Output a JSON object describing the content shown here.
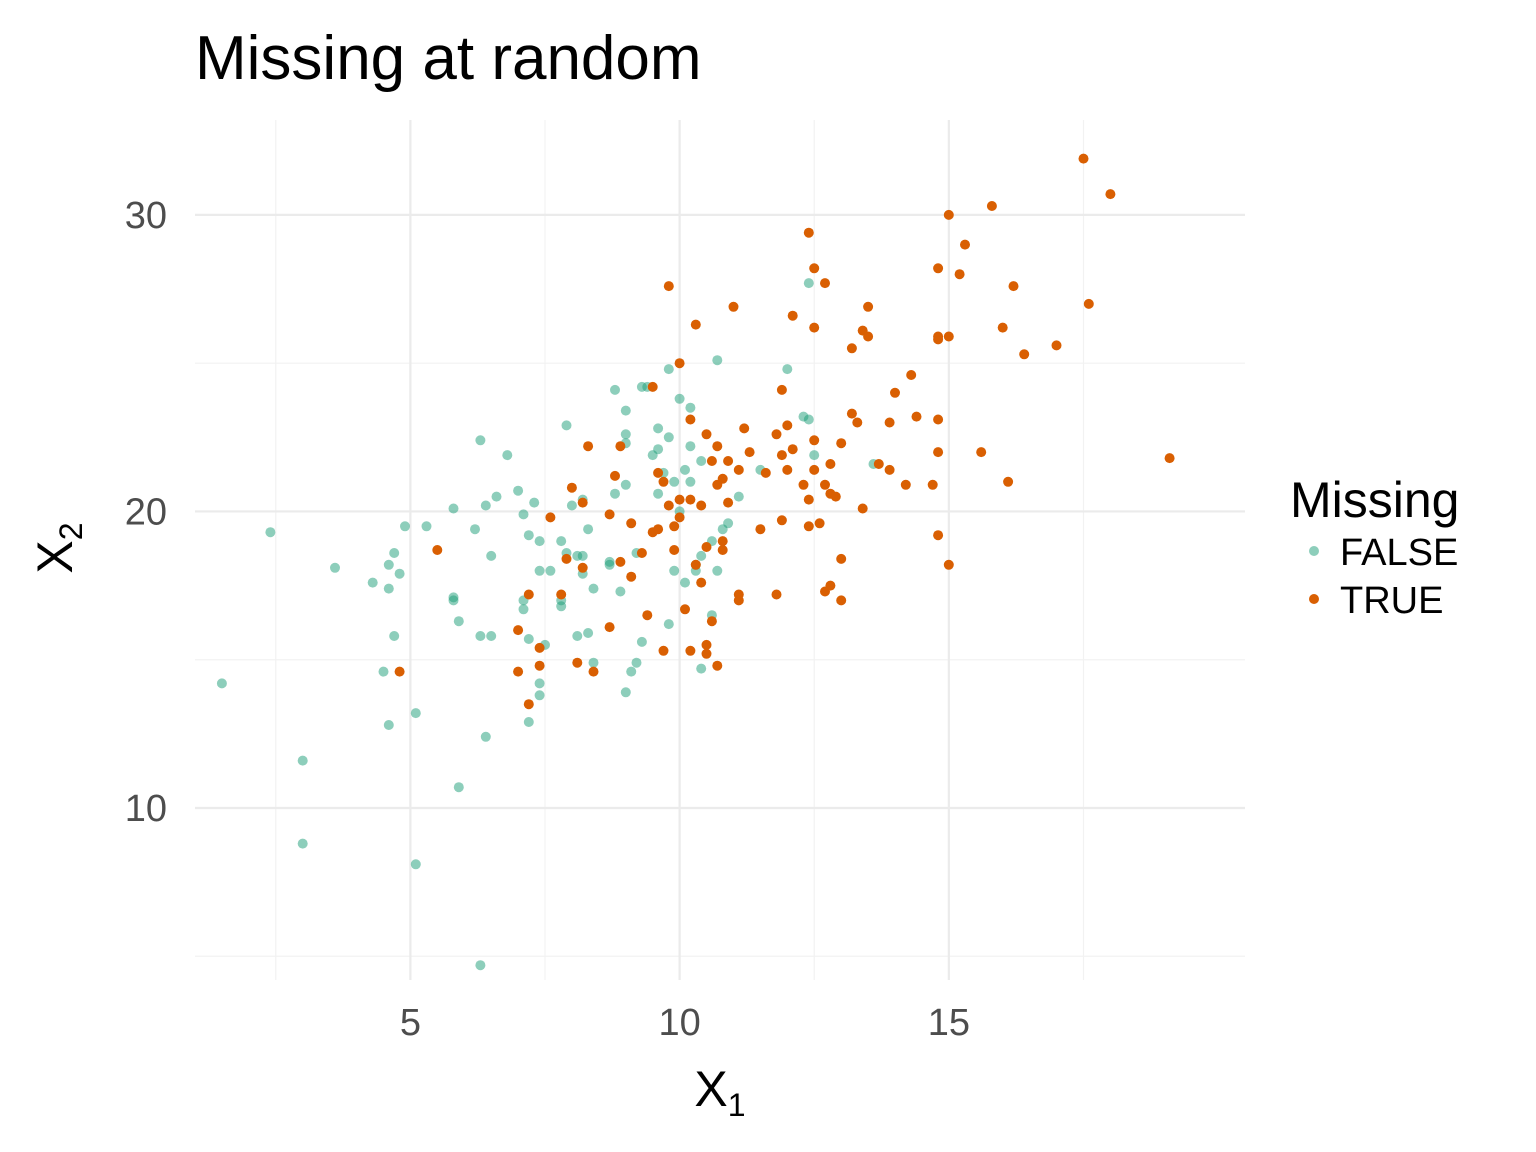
{
  "chart_data": {
    "type": "scatter",
    "title": "Missing at random",
    "xlabel": "X",
    "xlabel_sub": "1",
    "ylabel": "X",
    "ylabel_sub": "2",
    "xlim": [
      1.0,
      20.5
    ],
    "ylim": [
      4.2,
      33.2
    ],
    "x_ticks": [
      5,
      10,
      15
    ],
    "x_tick_labels": [
      "5",
      "10",
      "15"
    ],
    "x_minor_ticks": [
      2.5,
      7.5,
      12.5,
      17.5
    ],
    "y_ticks": [
      10,
      20,
      30
    ],
    "y_tick_labels": [
      "10",
      "20",
      "30"
    ],
    "y_minor_ticks": [
      5,
      15,
      25
    ],
    "grid": true,
    "legend": {
      "title": "Missing",
      "placement": "right",
      "entries": [
        {
          "label": "FALSE",
          "color": "#1b9e77"
        },
        {
          "label": "TRUE",
          "color": "#d95f02"
        }
      ]
    },
    "series": [
      {
        "name": "FALSE",
        "color": "#1b9e77",
        "opacity": 0.5,
        "points": [
          [
            1.5,
            14.2
          ],
          [
            2.4,
            19.3
          ],
          [
            3.0,
            11.6
          ],
          [
            3.0,
            8.8
          ],
          [
            3.6,
            18.1
          ],
          [
            4.3,
            17.6
          ],
          [
            4.5,
            14.6
          ],
          [
            4.6,
            12.8
          ],
          [
            4.6,
            17.4
          ],
          [
            4.6,
            18.2
          ],
          [
            4.7,
            18.6
          ],
          [
            4.7,
            15.8
          ],
          [
            4.8,
            17.9
          ],
          [
            4.9,
            19.5
          ],
          [
            5.1,
            13.2
          ],
          [
            5.1,
            8.1
          ],
          [
            5.3,
            19.5
          ],
          [
            5.8,
            17.1
          ],
          [
            5.8,
            17.0
          ],
          [
            5.8,
            20.1
          ],
          [
            5.9,
            16.3
          ],
          [
            5.9,
            10.7
          ],
          [
            6.2,
            19.4
          ],
          [
            6.3,
            15.8
          ],
          [
            6.3,
            22.4
          ],
          [
            6.4,
            20.2
          ],
          [
            6.4,
            12.4
          ],
          [
            6.5,
            18.5
          ],
          [
            6.5,
            15.8
          ],
          [
            6.6,
            20.5
          ],
          [
            6.8,
            21.9
          ],
          [
            6.3,
            4.7
          ],
          [
            7.0,
            20.7
          ],
          [
            7.1,
            19.9
          ],
          [
            7.1,
            17.0
          ],
          [
            7.1,
            16.7
          ],
          [
            7.2,
            15.7
          ],
          [
            7.2,
            19.2
          ],
          [
            7.2,
            12.9
          ],
          [
            7.3,
            20.3
          ],
          [
            7.4,
            19.0
          ],
          [
            7.4,
            18.0
          ],
          [
            7.4,
            14.2
          ],
          [
            7.4,
            13.8
          ],
          [
            7.5,
            15.5
          ],
          [
            7.6,
            18.0
          ],
          [
            7.8,
            16.8
          ],
          [
            7.8,
            17.0
          ],
          [
            7.8,
            19.0
          ],
          [
            7.9,
            22.9
          ],
          [
            7.9,
            18.6
          ],
          [
            8.0,
            20.2
          ],
          [
            8.1,
            15.8
          ],
          [
            8.1,
            18.5
          ],
          [
            8.2,
            17.9
          ],
          [
            8.2,
            18.5
          ],
          [
            8.2,
            20.4
          ],
          [
            8.3,
            15.9
          ],
          [
            8.3,
            19.4
          ],
          [
            8.4,
            17.4
          ],
          [
            8.4,
            14.9
          ],
          [
            8.7,
            18.3
          ],
          [
            8.7,
            18.2
          ],
          [
            8.8,
            20.6
          ],
          [
            8.8,
            24.1
          ],
          [
            8.9,
            17.3
          ],
          [
            9.0,
            23.4
          ],
          [
            9.0,
            22.6
          ],
          [
            9.0,
            22.3
          ],
          [
            9.0,
            20.9
          ],
          [
            9.0,
            13.9
          ],
          [
            9.1,
            14.6
          ],
          [
            9.2,
            18.6
          ],
          [
            9.2,
            14.9
          ],
          [
            9.3,
            15.6
          ],
          [
            9.3,
            24.2
          ],
          [
            9.4,
            24.2
          ],
          [
            9.5,
            21.9
          ],
          [
            9.6,
            22.1
          ],
          [
            9.6,
            22.8
          ],
          [
            9.6,
            20.6
          ],
          [
            9.7,
            21.3
          ],
          [
            9.8,
            16.2
          ],
          [
            9.8,
            22.5
          ],
          [
            9.8,
            24.8
          ],
          [
            9.9,
            21.0
          ],
          [
            9.9,
            18.0
          ],
          [
            10.0,
            23.8
          ],
          [
            10.0,
            20.0
          ],
          [
            10.1,
            21.4
          ],
          [
            10.1,
            17.6
          ],
          [
            10.2,
            23.5
          ],
          [
            10.2,
            22.2
          ],
          [
            10.2,
            21.0
          ],
          [
            10.3,
            18.0
          ],
          [
            10.3,
            18.2
          ],
          [
            10.4,
            21.7
          ],
          [
            10.4,
            18.5
          ],
          [
            10.4,
            14.7
          ],
          [
            10.6,
            19.0
          ],
          [
            10.6,
            16.5
          ],
          [
            10.7,
            25.1
          ],
          [
            10.7,
            18.0
          ],
          [
            10.8,
            19.4
          ],
          [
            10.9,
            19.6
          ],
          [
            11.1,
            20.5
          ],
          [
            11.5,
            21.4
          ],
          [
            12.0,
            24.8
          ],
          [
            12.3,
            23.2
          ],
          [
            12.4,
            23.1
          ],
          [
            12.4,
            27.7
          ],
          [
            12.5,
            21.9
          ],
          [
            13.6,
            21.6
          ]
        ]
      },
      {
        "name": "TRUE",
        "color": "#d95f02",
        "opacity": 1.0,
        "points": [
          [
            4.8,
            14.6
          ],
          [
            5.5,
            18.7
          ],
          [
            7.0,
            14.6
          ],
          [
            7.0,
            16.0
          ],
          [
            7.2,
            13.5
          ],
          [
            7.2,
            17.2
          ],
          [
            7.4,
            15.4
          ],
          [
            7.4,
            14.8
          ],
          [
            7.6,
            19.8
          ],
          [
            7.8,
            17.2
          ],
          [
            7.9,
            18.4
          ],
          [
            8.0,
            20.8
          ],
          [
            8.1,
            14.9
          ],
          [
            8.2,
            18.1
          ],
          [
            8.2,
            20.3
          ],
          [
            8.3,
            22.2
          ],
          [
            8.4,
            14.6
          ],
          [
            8.7,
            19.9
          ],
          [
            8.7,
            16.1
          ],
          [
            8.8,
            21.2
          ],
          [
            8.9,
            22.2
          ],
          [
            8.9,
            18.3
          ],
          [
            9.1,
            19.6
          ],
          [
            9.1,
            17.8
          ],
          [
            9.3,
            18.6
          ],
          [
            9.4,
            16.5
          ],
          [
            9.5,
            24.2
          ],
          [
            9.5,
            19.3
          ],
          [
            9.6,
            19.4
          ],
          [
            9.6,
            21.3
          ],
          [
            9.7,
            15.3
          ],
          [
            9.7,
            21.0
          ],
          [
            9.8,
            27.6
          ],
          [
            9.8,
            20.2
          ],
          [
            9.9,
            18.7
          ],
          [
            9.9,
            19.5
          ],
          [
            10.0,
            25.0
          ],
          [
            10.0,
            20.4
          ],
          [
            10.0,
            19.8
          ],
          [
            10.1,
            16.7
          ],
          [
            10.2,
            23.1
          ],
          [
            10.2,
            15.3
          ],
          [
            10.2,
            20.4
          ],
          [
            10.3,
            26.3
          ],
          [
            10.3,
            18.2
          ],
          [
            10.4,
            17.6
          ],
          [
            10.4,
            20.2
          ],
          [
            10.5,
            22.6
          ],
          [
            10.5,
            18.8
          ],
          [
            10.5,
            15.5
          ],
          [
            10.5,
            15.2
          ],
          [
            10.6,
            16.3
          ],
          [
            10.6,
            21.7
          ],
          [
            10.7,
            22.2
          ],
          [
            10.7,
            20.9
          ],
          [
            10.7,
            14.8
          ],
          [
            10.8,
            21.1
          ],
          [
            10.8,
            18.7
          ],
          [
            10.8,
            19.0
          ],
          [
            10.9,
            21.7
          ],
          [
            10.9,
            20.3
          ],
          [
            11.0,
            26.9
          ],
          [
            11.1,
            17.0
          ],
          [
            11.1,
            17.2
          ],
          [
            11.1,
            21.4
          ],
          [
            11.2,
            22.8
          ],
          [
            11.3,
            22.0
          ],
          [
            11.5,
            19.4
          ],
          [
            11.6,
            21.3
          ],
          [
            11.8,
            17.2
          ],
          [
            11.8,
            22.6
          ],
          [
            11.9,
            24.1
          ],
          [
            11.9,
            19.7
          ],
          [
            11.9,
            21.9
          ],
          [
            12.0,
            21.4
          ],
          [
            12.0,
            22.9
          ],
          [
            12.1,
            26.6
          ],
          [
            12.1,
            22.1
          ],
          [
            12.3,
            20.9
          ],
          [
            12.4,
            29.4
          ],
          [
            12.4,
            20.4
          ],
          [
            12.4,
            19.5
          ],
          [
            12.5,
            28.2
          ],
          [
            12.5,
            26.2
          ],
          [
            12.5,
            22.4
          ],
          [
            12.5,
            21.4
          ],
          [
            12.6,
            19.6
          ],
          [
            12.7,
            27.7
          ],
          [
            12.7,
            20.9
          ],
          [
            12.7,
            17.3
          ],
          [
            12.8,
            20.6
          ],
          [
            12.8,
            21.6
          ],
          [
            12.8,
            17.5
          ],
          [
            12.9,
            20.5
          ],
          [
            13.0,
            22.3
          ],
          [
            13.0,
            18.4
          ],
          [
            13.0,
            17.0
          ],
          [
            13.2,
            25.5
          ],
          [
            13.2,
            23.3
          ],
          [
            13.3,
            23.0
          ],
          [
            13.4,
            26.1
          ],
          [
            13.4,
            20.1
          ],
          [
            13.5,
            26.9
          ],
          [
            13.5,
            25.9
          ],
          [
            13.7,
            21.6
          ],
          [
            13.9,
            23.0
          ],
          [
            13.9,
            21.4
          ],
          [
            14.0,
            24.0
          ],
          [
            14.2,
            20.9
          ],
          [
            14.3,
            24.6
          ],
          [
            14.4,
            23.2
          ],
          [
            14.7,
            20.9
          ],
          [
            14.8,
            23.1
          ],
          [
            14.8,
            22.0
          ],
          [
            14.8,
            19.2
          ],
          [
            14.8,
            25.8
          ],
          [
            14.8,
            28.2
          ],
          [
            14.8,
            25.9
          ],
          [
            15.0,
            25.9
          ],
          [
            15.0,
            18.2
          ],
          [
            15.0,
            30.0
          ],
          [
            15.2,
            28.0
          ],
          [
            15.3,
            29.0
          ],
          [
            15.6,
            22.0
          ],
          [
            15.8,
            30.3
          ],
          [
            16.0,
            26.2
          ],
          [
            16.1,
            21.0
          ],
          [
            16.2,
            27.6
          ],
          [
            16.4,
            25.3
          ],
          [
            17.0,
            25.6
          ],
          [
            17.5,
            31.9
          ],
          [
            17.6,
            27.0
          ],
          [
            18.0,
            30.7
          ],
          [
            19.1,
            21.8
          ]
        ]
      }
    ]
  }
}
